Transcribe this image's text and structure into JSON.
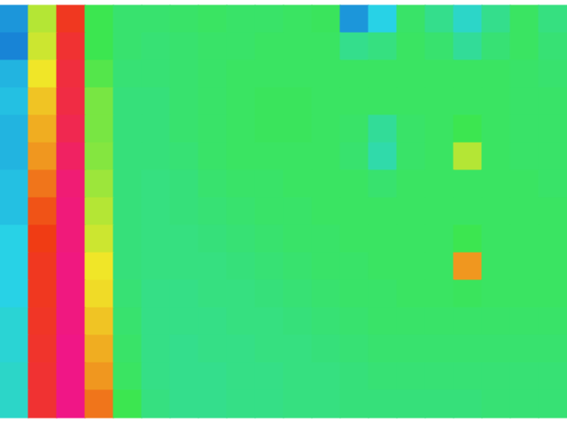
{
  "chart_data": {
    "type": "heatmap",
    "tick_labels": false,
    "zlim": [
      0,
      1
    ],
    "cells": [
      [
        0.15,
        0.6,
        0.82,
        0.5,
        0.45,
        0.45,
        0.46,
        0.47,
        0.46,
        0.46,
        0.47,
        0.48,
        0.15,
        0.25,
        0.46,
        0.4,
        0.3,
        0.4,
        0.47,
        0.42
      ],
      [
        0.12,
        0.62,
        0.85,
        0.5,
        0.45,
        0.44,
        0.45,
        0.46,
        0.46,
        0.47,
        0.47,
        0.47,
        0.4,
        0.42,
        0.47,
        0.45,
        0.38,
        0.44,
        0.47,
        0.44
      ],
      [
        0.2,
        0.65,
        0.87,
        0.52,
        0.44,
        0.44,
        0.45,
        0.46,
        0.47,
        0.47,
        0.47,
        0.47,
        0.47,
        0.47,
        0.47,
        0.47,
        0.47,
        0.47,
        0.46,
        0.45
      ],
      [
        0.22,
        0.68,
        0.88,
        0.55,
        0.43,
        0.43,
        0.45,
        0.46,
        0.47,
        0.48,
        0.48,
        0.47,
        0.47,
        0.47,
        0.47,
        0.47,
        0.47,
        0.47,
        0.46,
        0.46
      ],
      [
        0.2,
        0.7,
        0.9,
        0.55,
        0.43,
        0.43,
        0.45,
        0.46,
        0.47,
        0.48,
        0.48,
        0.47,
        0.46,
        0.38,
        0.46,
        0.47,
        0.5,
        0.47,
        0.46,
        0.46
      ],
      [
        0.2,
        0.72,
        0.93,
        0.56,
        0.43,
        0.43,
        0.44,
        0.46,
        0.47,
        0.47,
        0.47,
        0.47,
        0.45,
        0.35,
        0.46,
        0.47,
        0.6,
        0.47,
        0.46,
        0.46
      ],
      [
        0.22,
        0.75,
        0.96,
        0.58,
        0.43,
        0.42,
        0.43,
        0.45,
        0.46,
        0.46,
        0.47,
        0.47,
        0.47,
        0.45,
        0.47,
        0.47,
        0.47,
        0.47,
        0.47,
        0.46
      ],
      [
        0.22,
        0.78,
        0.97,
        0.6,
        0.43,
        0.42,
        0.43,
        0.44,
        0.45,
        0.46,
        0.46,
        0.47,
        0.47,
        0.47,
        0.47,
        0.47,
        0.47,
        0.47,
        0.47,
        0.47
      ],
      [
        0.25,
        0.8,
        0.97,
        0.62,
        0.43,
        0.42,
        0.42,
        0.43,
        0.44,
        0.45,
        0.46,
        0.46,
        0.47,
        0.47,
        0.47,
        0.47,
        0.5,
        0.47,
        0.47,
        0.47
      ],
      [
        0.25,
        0.82,
        0.98,
        0.65,
        0.43,
        0.42,
        0.42,
        0.42,
        0.43,
        0.44,
        0.45,
        0.46,
        0.46,
        0.47,
        0.47,
        0.47,
        0.72,
        0.47,
        0.47,
        0.47
      ],
      [
        0.25,
        0.82,
        0.98,
        0.66,
        0.44,
        0.41,
        0.41,
        0.42,
        0.42,
        0.43,
        0.44,
        0.45,
        0.46,
        0.46,
        0.47,
        0.47,
        0.48,
        0.47,
        0.47,
        0.47
      ],
      [
        0.28,
        0.83,
        0.98,
        0.68,
        0.45,
        0.41,
        0.41,
        0.41,
        0.42,
        0.42,
        0.43,
        0.44,
        0.45,
        0.46,
        0.46,
        0.46,
        0.46,
        0.46,
        0.46,
        0.46
      ],
      [
        0.28,
        0.84,
        0.99,
        0.7,
        0.46,
        0.41,
        0.4,
        0.41,
        0.41,
        0.42,
        0.42,
        0.43,
        0.44,
        0.45,
        0.45,
        0.45,
        0.45,
        0.45,
        0.45,
        0.45
      ],
      [
        0.3,
        0.85,
        0.99,
        0.72,
        0.47,
        0.41,
        0.4,
        0.4,
        0.41,
        0.41,
        0.42,
        0.42,
        0.43,
        0.44,
        0.44,
        0.44,
        0.44,
        0.44,
        0.44,
        0.44
      ],
      [
        0.3,
        0.85,
        0.99,
        0.75,
        0.5,
        0.42,
        0.4,
        0.4,
        0.41,
        0.41,
        0.42,
        0.42,
        0.43,
        0.43,
        0.43,
        0.43,
        0.43,
        0.44,
        0.44,
        0.44
      ]
    ]
  }
}
